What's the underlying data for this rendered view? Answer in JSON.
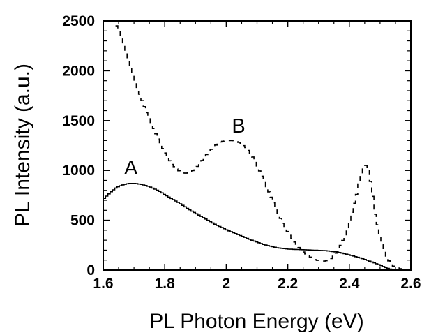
{
  "chart_data": {
    "type": "line",
    "title": "",
    "xlabel": "PL Photon Energy (eV)",
    "ylabel": "PL Intensity (a.u.)",
    "xlim": [
      1.6,
      2.6
    ],
    "ylim": [
      0,
      2500
    ],
    "x_ticks": [
      1.6,
      1.8,
      2.0,
      2.2,
      2.4,
      2.6
    ],
    "x_tick_labels": [
      "1.6",
      "1.8",
      "2",
      "2.2",
      "2.4",
      "2.6"
    ],
    "y_ticks": [
      0,
      500,
      1000,
      1500,
      2000,
      2500
    ],
    "y_tick_labels": [
      "0",
      "500",
      "1000",
      "1500",
      "2000",
      "2500"
    ],
    "grid": false,
    "legend": "none",
    "series": [
      {
        "style": "solid",
        "color": "#000000",
        "x": [
          1.6,
          1.62,
          1.64,
          1.66,
          1.68,
          1.7,
          1.72,
          1.74,
          1.76,
          1.78,
          1.8,
          1.84,
          1.88,
          1.92,
          1.96,
          2.0,
          2.04,
          2.08,
          2.12,
          2.16,
          2.2,
          2.24,
          2.28,
          2.32,
          2.36,
          2.4,
          2.44,
          2.48,
          2.5,
          2.52,
          2.54
        ],
        "y": [
          720,
          780,
          830,
          855,
          870,
          870,
          860,
          845,
          820,
          790,
          750,
          680,
          600,
          530,
          460,
          400,
          350,
          300,
          255,
          225,
          210,
          205,
          200,
          195,
          180,
          150,
          115,
          70,
          45,
          20,
          0
        ]
      },
      {
        "style": "dashed",
        "color": "#000000",
        "x": [
          1.64,
          1.66,
          1.68,
          1.7,
          1.72,
          1.74,
          1.76,
          1.78,
          1.8,
          1.82,
          1.84,
          1.86,
          1.88,
          1.9,
          1.92,
          1.94,
          1.96,
          1.98,
          2.0,
          2.02,
          2.04,
          2.06,
          2.08,
          2.1,
          2.12,
          2.14,
          2.16,
          2.18,
          2.2,
          2.22,
          2.24,
          2.26,
          2.28,
          2.3,
          2.32,
          2.34,
          2.36,
          2.38,
          2.4,
          2.42,
          2.43,
          2.44,
          2.45,
          2.46,
          2.47,
          2.48,
          2.5,
          2.52,
          2.54,
          2.56,
          2.58
        ],
        "y": [
          2450,
          2300,
          2100,
          1900,
          1720,
          1560,
          1420,
          1280,
          1160,
          1060,
          1000,
          970,
          980,
          1030,
          1110,
          1190,
          1250,
          1290,
          1300,
          1300,
          1280,
          1230,
          1150,
          1030,
          890,
          750,
          600,
          470,
          360,
          270,
          200,
          150,
          110,
          90,
          90,
          120,
          200,
          330,
          520,
          760,
          900,
          1020,
          1050,
          980,
          800,
          560,
          280,
          110,
          40,
          15,
          5
        ]
      }
    ],
    "annotations": [
      {
        "text": "A",
        "x": 1.69,
        "y": 960
      },
      {
        "text": "B",
        "x": 2.04,
        "y": 1380
      }
    ]
  }
}
